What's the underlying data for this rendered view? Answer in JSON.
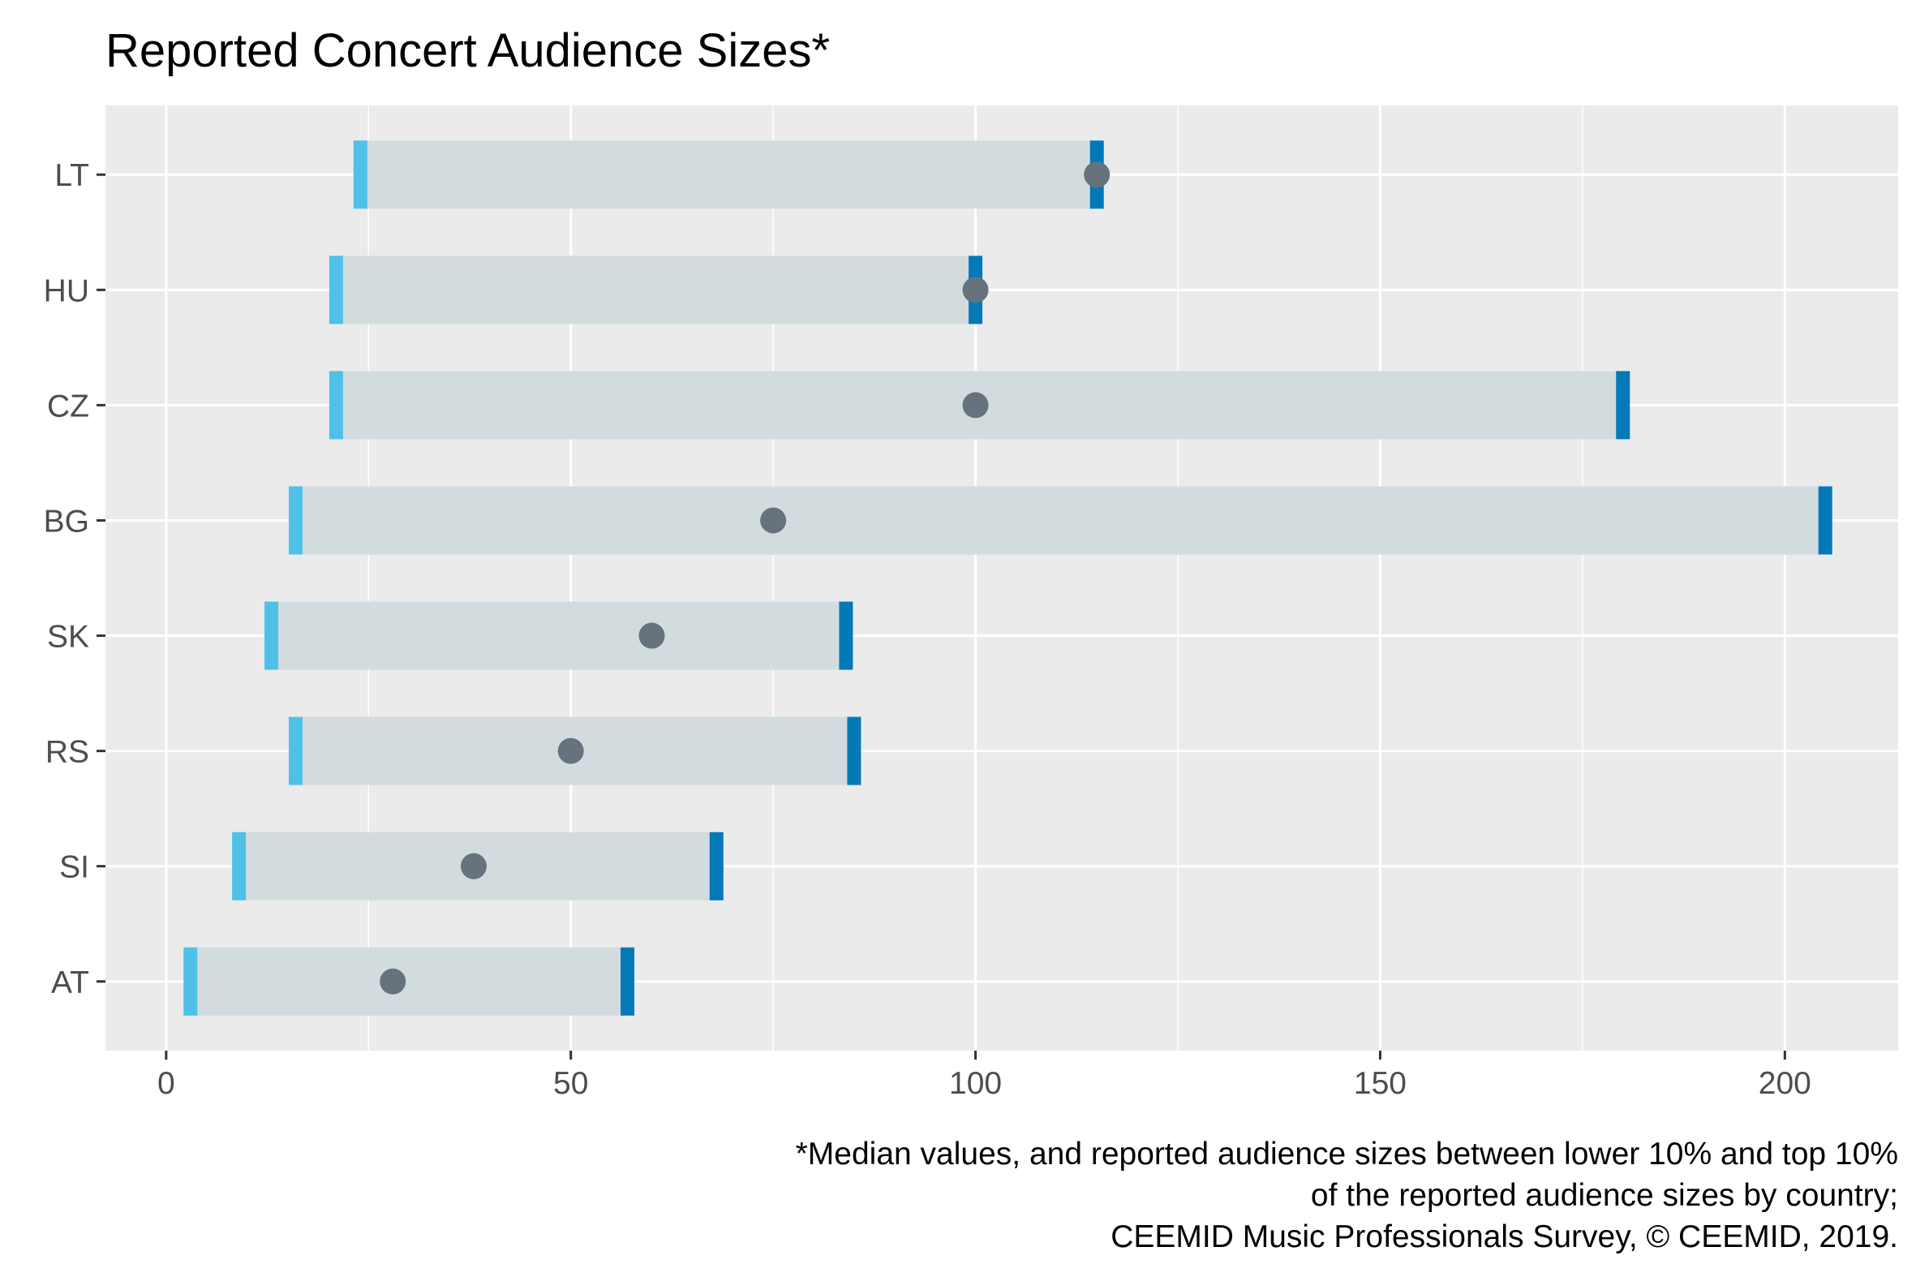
{
  "chart_data": {
    "type": "range-bar-dot",
    "title": "Reported Concert Audience Sizes*",
    "xlabel": "",
    "ylabel": "",
    "xlim": [
      -7.5,
      214
    ],
    "x_ticks": [
      0,
      50,
      100,
      150,
      200
    ],
    "x_minor_ticks": [
      25,
      75,
      125,
      175
    ],
    "categories": [
      "LT",
      "HU",
      "CZ",
      "BG",
      "SK",
      "RS",
      "SI",
      "AT"
    ],
    "series": [
      {
        "key": "low",
        "values": [
          24,
          21,
          21,
          16,
          13,
          16,
          9,
          3
        ]
      },
      {
        "key": "high",
        "values": [
          115,
          100,
          180,
          205,
          84,
          85,
          68,
          57
        ]
      },
      {
        "key": "median",
        "values": [
          115,
          100,
          100,
          75,
          60,
          50,
          38,
          28
        ]
      }
    ],
    "caption": [
      "*Median values, and reported audience sizes between lower 10% and top 10%",
      "of the reported audience sizes by country;",
      "CEEMID Music Professionals Survey, © CEEMID, 2019."
    ],
    "grid": true,
    "legend": "none",
    "colors": {
      "panel": "#ebebeb",
      "grid": "#ffffff",
      "range": "#d2dcdf",
      "low_marker": "#4fc0e8",
      "high_marker": "#0479b8",
      "median_point": "#67737c",
      "axis_text": "#4d4d4d",
      "tick": "#333333"
    }
  }
}
